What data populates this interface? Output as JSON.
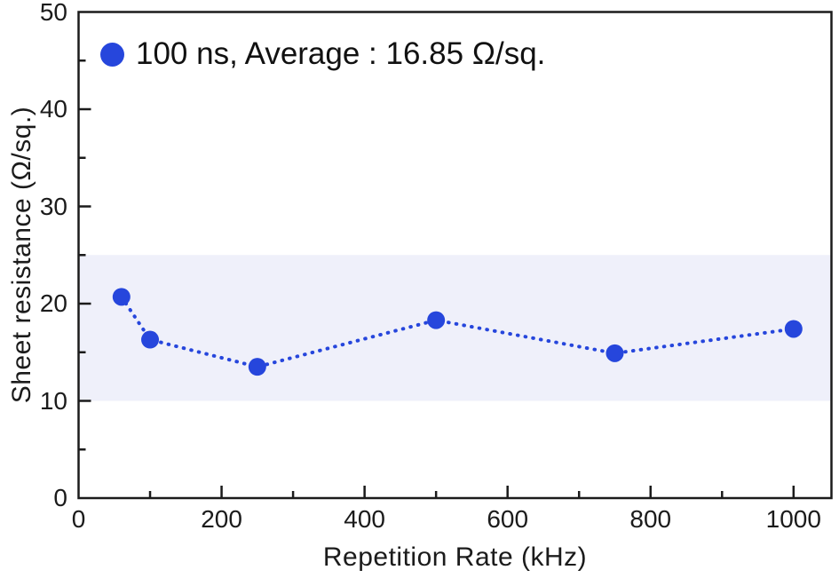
{
  "chart_data": {
    "type": "scatter",
    "title": "",
    "xlabel": "Repetition Rate (kHz)",
    "ylabel": "Sheet resistance (Ω/sq.)",
    "xlim": [
      0,
      1053
    ],
    "ylim": [
      0,
      50
    ],
    "x_major_ticks": [
      0,
      200,
      400,
      600,
      800,
      1000
    ],
    "x_minor_ticks": [
      100,
      300,
      500,
      700,
      900
    ],
    "y_major_ticks": [
      0,
      10,
      20,
      30,
      40,
      50
    ],
    "y_minor_ticks": [
      5,
      15,
      25,
      35,
      45
    ],
    "grid": false,
    "legend_position": "top-left",
    "series": [
      {
        "name": "100 ns",
        "legend_label": "100 ns, Average : 16.85 Ω/sq.",
        "average": 16.85,
        "x": [
          60,
          100,
          250,
          500,
          750,
          1000
        ],
        "y": [
          20.7,
          16.3,
          13.5,
          18.3,
          14.9,
          17.4
        ],
        "color": "#2646DC",
        "line_style": "dotted",
        "marker": "circle"
      }
    ],
    "band": {
      "y_from": 10,
      "y_to": 25,
      "color": "#EFF0FA"
    }
  },
  "colors": {
    "axis": "#1b1b1b",
    "text": "#1b1b1b",
    "background": "#ffffff",
    "accent_blue": "#2646DC"
  }
}
